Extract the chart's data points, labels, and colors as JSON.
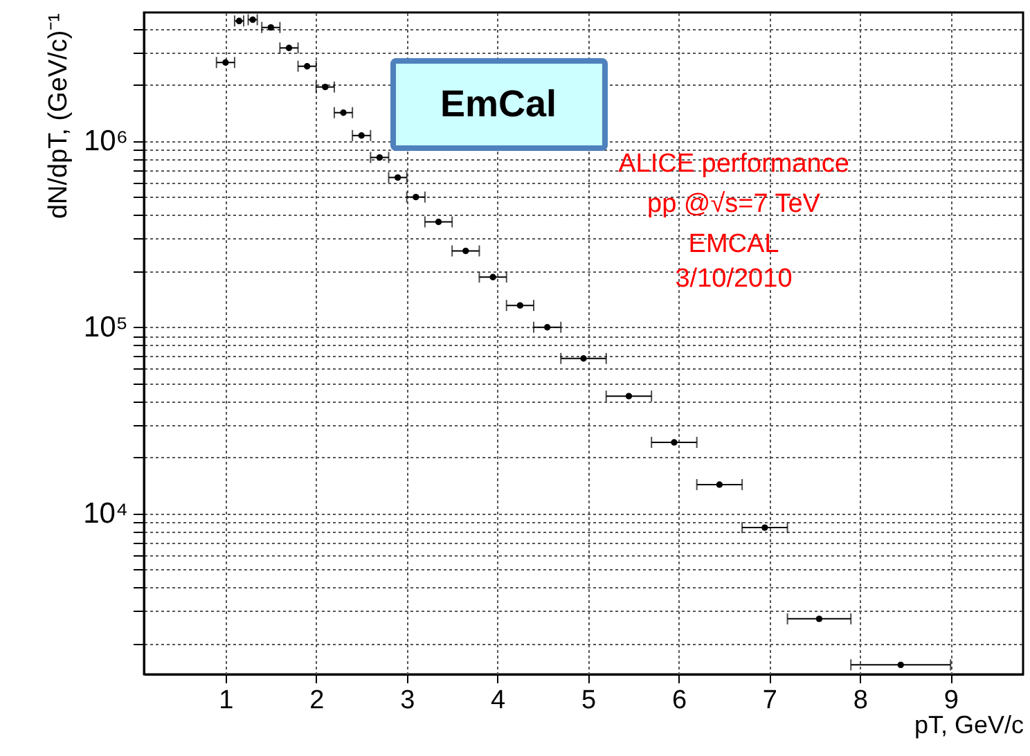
{
  "chart_data": {
    "type": "scatter",
    "xlabel": "pT, GeV/c",
    "ylabel": "dN/dpT, (GeV/c)⁻¹",
    "annotations": [
      "EmCal",
      "ALICE performance",
      "pp @√s=7 TeV",
      "EMCAL",
      "3/10/2010"
    ],
    "x": [
      1.0,
      1.15,
      1.3,
      1.5,
      1.7,
      1.9,
      2.1,
      2.3,
      2.5,
      2.7,
      2.9,
      3.1,
      3.35,
      3.65,
      3.95,
      4.25,
      4.55,
      4.95,
      5.45,
      5.95,
      6.45,
      6.95,
      7.55,
      8.45
    ],
    "series": [
      {
        "color": "#000000",
        "values": [
          2640000,
          4410000,
          4480000,
          4070000,
          3160000,
          2520000,
          1950000,
          1420000,
          1070000,
          816000,
          637000,
          500000,
          368000,
          257000,
          186000,
          131000,
          100000,
          68000,
          42700,
          24100,
          14300,
          8400,
          2720,
          1540
        ],
        "xerrors": [
          0.1,
          0.05,
          0.05,
          0.1,
          0.1,
          0.1,
          0.1,
          0.1,
          0.1,
          0.1,
          0.1,
          0.1,
          0.15,
          0.15,
          0.15,
          0.15,
          0.15,
          0.25,
          0.25,
          0.25,
          0.25,
          0.25,
          0.35,
          0.55
        ]
      }
    ],
    "xlim": [
      0.1,
      9.8
    ],
    "xticks": [
      1,
      2,
      3,
      4,
      5,
      6,
      7,
      8,
      9
    ],
    "ylim": [
      1370,
      4900000
    ],
    "log": "y",
    "yticks": [
      {
        "value": 2000,
        "label": null
      },
      {
        "value": 3000,
        "label": null
      },
      {
        "value": 4000,
        "label": null
      },
      {
        "value": 5000,
        "label": null
      },
      {
        "value": 6000,
        "label": null
      },
      {
        "value": 7000,
        "label": null
      },
      {
        "value": 8000,
        "label": null
      },
      {
        "value": 9000,
        "label": null
      },
      {
        "value": 10000,
        "label": "10⁴"
      },
      {
        "value": 20000,
        "label": null
      },
      {
        "value": 30000,
        "label": null
      },
      {
        "value": 40000,
        "label": null
      },
      {
        "value": 50000,
        "label": null
      },
      {
        "value": 60000,
        "label": null
      },
      {
        "value": 70000,
        "label": null
      },
      {
        "value": 80000,
        "label": null
      },
      {
        "value": 90000,
        "label": null
      },
      {
        "value": 100000,
        "label": "10⁵"
      },
      {
        "value": 200000,
        "label": null
      },
      {
        "value": 300000,
        "label": null
      },
      {
        "value": 400000,
        "label": null
      },
      {
        "value": 500000,
        "label": null
      },
      {
        "value": 600000,
        "label": null
      },
      {
        "value": 700000,
        "label": null
      },
      {
        "value": 800000,
        "label": null
      },
      {
        "value": 900000,
        "label": null
      },
      {
        "value": 1000000,
        "label": "10⁶"
      },
      {
        "value": 2000000,
        "label": null
      },
      {
        "value": 3000000,
        "label": null
      },
      {
        "value": 4000000,
        "label": null
      }
    ],
    "grid": true,
    "marker": "circle"
  }
}
